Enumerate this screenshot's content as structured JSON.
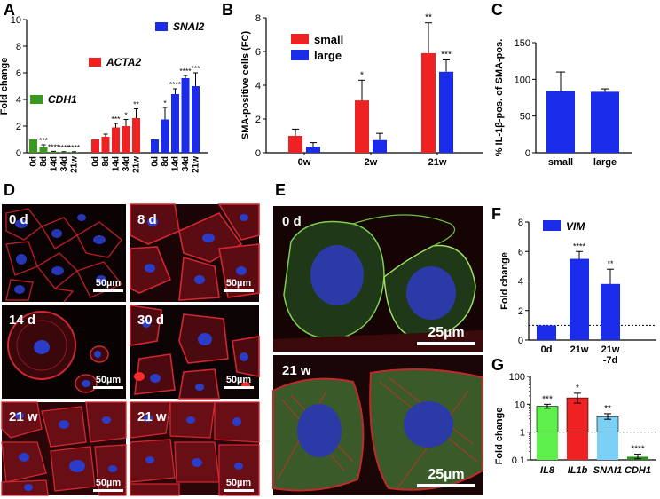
{
  "panel_labels": {
    "A": "A",
    "B": "B",
    "C": "C",
    "D": "D",
    "E": "E",
    "F": "F",
    "G": "G"
  },
  "chart_data": [
    {
      "id": "A",
      "type": "bar",
      "ylabel": "Fold change",
      "ylim": [
        0,
        10
      ],
      "yticks": [
        0,
        2,
        4,
        6,
        8,
        10
      ],
      "groups": [
        {
          "name": "CDH1",
          "color": "#3a9a1e",
          "categories": [
            "0d",
            "8d",
            "14d",
            "34d",
            "21w"
          ],
          "values": [
            1.0,
            0.45,
            0.07,
            0.05,
            0.05
          ],
          "errors": [
            0,
            0.15,
            0.04,
            0.03,
            0.03
          ],
          "stars": [
            "",
            "***",
            "****",
            "****",
            "****"
          ]
        },
        {
          "name": "ACTA2",
          "color": "#ee2222",
          "categories": [
            "0d",
            "8d",
            "14d",
            "34d",
            "21w"
          ],
          "values": [
            1.0,
            1.2,
            1.9,
            2.0,
            2.6
          ],
          "errors": [
            0,
            0.2,
            0.3,
            0.5,
            0.7
          ],
          "stars": [
            "",
            "",
            "***",
            "*",
            "**"
          ]
        },
        {
          "name": "SNAI2",
          "color": "#1a2bea",
          "categories": [
            "0d",
            "8d",
            "14d",
            "34d",
            "21w"
          ],
          "values": [
            1.0,
            2.5,
            4.4,
            5.6,
            5.0
          ],
          "errors": [
            0,
            0.9,
            0.4,
            0.2,
            1.0
          ],
          "stars": [
            "",
            "*",
            "****",
            "****",
            "***"
          ]
        }
      ]
    },
    {
      "id": "B",
      "type": "bar",
      "ylabel": "SMA-positive cells (FC)",
      "ylim": [
        0,
        8
      ],
      "yticks": [
        0,
        2,
        4,
        6,
        8
      ],
      "categories": [
        "0w",
        "2w",
        "21w"
      ],
      "legend": "top-left",
      "series": [
        {
          "name": "small",
          "color": "#ee2222",
          "values": [
            1.0,
            3.1,
            5.9
          ],
          "errors": [
            0.4,
            1.2,
            1.8
          ],
          "stars": [
            "",
            "*",
            "**"
          ]
        },
        {
          "name": "large",
          "color": "#1a2bea",
          "values": [
            0.35,
            0.75,
            4.8
          ],
          "errors": [
            0.25,
            0.4,
            0.7
          ],
          "stars": [
            "",
            "",
            "***"
          ]
        }
      ]
    },
    {
      "id": "C",
      "type": "bar",
      "ylabel": "% IL-1β-pos. of SMA-pos.",
      "ylim": [
        0,
        150
      ],
      "yticks": [
        0,
        50,
        100,
        150
      ],
      "categories": [
        "small",
        "large"
      ],
      "values": [
        84,
        83
      ],
      "errors": [
        26,
        4
      ],
      "color": "#1a2bea"
    },
    {
      "id": "F",
      "type": "bar",
      "ylabel": "Fold change",
      "ylim": [
        0,
        8
      ],
      "yticks": [
        0,
        2,
        4,
        6,
        8
      ],
      "categories": [
        "0d",
        "21w",
        "21w\n-7d"
      ],
      "values": [
        1.0,
        5.5,
        3.8
      ],
      "errors": [
        0,
        0.5,
        1.0
      ],
      "stars": [
        "",
        "****",
        "**"
      ],
      "legend": {
        "name": "VIM",
        "color": "#1a2bea"
      },
      "reference_line": 1
    },
    {
      "id": "G",
      "type": "bar",
      "ylabel": "Fold change",
      "yscale": "log",
      "ylim": [
        0.1,
        100
      ],
      "yticks": [
        "0.1",
        "1",
        "10",
        "100"
      ],
      "categories": [
        "IL8",
        "IL1b",
        "SNAI1",
        "CDH1"
      ],
      "values": [
        8.5,
        17,
        3.6,
        0.13
      ],
      "err_low": [
        7.2,
        11,
        2.9,
        0.11
      ],
      "err_high": [
        10,
        25,
        4.6,
        0.16
      ],
      "colors": [
        "#5df04a",
        "#ee2222",
        "#7ccff5",
        "#2d8f1e"
      ],
      "stars": [
        "***",
        "*",
        "**",
        "****"
      ],
      "reference_line": 1
    }
  ],
  "micrographs": {
    "D": [
      {
        "label": "0 d",
        "scale": "50µm"
      },
      {
        "label": "8 d",
        "scale": "50µm"
      },
      {
        "label": "14 d",
        "scale": "50µm"
      },
      {
        "label": "30 d",
        "scale": "50µm"
      },
      {
        "label": "21 w",
        "scale": "50µm"
      },
      {
        "label": "21 w",
        "scale": "50µm"
      }
    ],
    "E": [
      {
        "label": "0 d",
        "scale": "25µm"
      },
      {
        "label": "21 w",
        "scale": "25µm"
      }
    ]
  },
  "colors": {
    "stain_actin": "#d0232a",
    "stain_nuclei": "#2a3cc8",
    "stain_vim": "#4a8a3a",
    "background": "#080202"
  }
}
